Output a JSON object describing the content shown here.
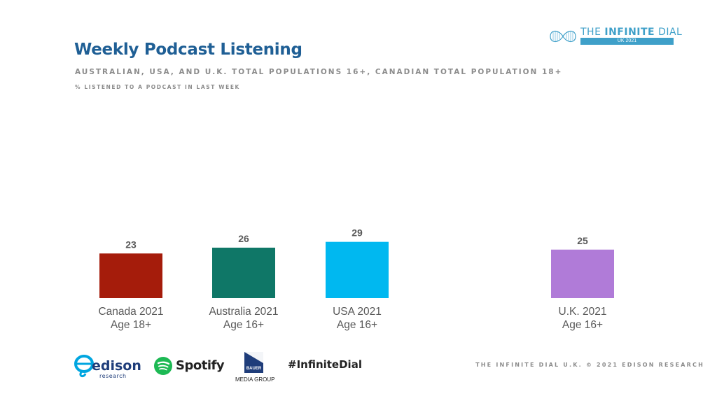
{
  "title": "Weekly Podcast Listening",
  "subtitle": "AUSTRALIAN, USA, AND U.K. TOTAL POPULATIONS 16+, CANADIAN TOTAL POPULATION 18+",
  "note": "% LISTENED TO A PODCAST IN LAST WEEK",
  "brand": {
    "name_prefix": "THE ",
    "name_bold": "INFINITE",
    "name_suffix": " DIAL",
    "edition": "UK 2021"
  },
  "footer": "THE INFINITE DIAL U.K. © 2021 EDISON RESEARCH",
  "hashtag": "#InfiniteDial",
  "logos": {
    "edison": {
      "name": "edison",
      "sub": "research"
    },
    "spotify": {
      "name": "Spotify"
    },
    "bauer": {
      "name": "BAUER",
      "sub": "MEDIA GROUP"
    }
  },
  "colors": {
    "canada": "#a51c0b",
    "australia": "#0f7767",
    "usa": "#00b8f0",
    "uk": "#b07bd8",
    "title": "#1f5f95"
  },
  "chart_data": {
    "type": "bar",
    "categories": [
      [
        "Canada 2021",
        "Age 18+"
      ],
      [
        "Australia 2021",
        "Age 16+"
      ],
      [
        "USA 2021",
        "Age 16+"
      ],
      [
        "U.K. 2021",
        "Age 16+"
      ]
    ],
    "values": [
      23,
      26,
      29,
      25
    ],
    "colors": [
      "#a51c0b",
      "#0f7767",
      "#00b8f0",
      "#b07bd8"
    ],
    "unit": "%"
  }
}
